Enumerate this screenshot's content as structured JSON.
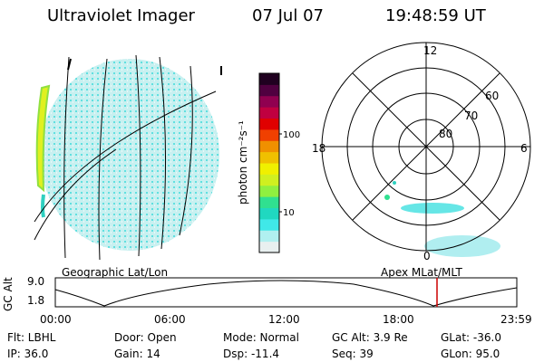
{
  "header": {
    "instrument": "Ultraviolet Imager",
    "date": "07 Jul 07",
    "time": "19:48:59 UT"
  },
  "colorbar": {
    "unit_label": "photon cm⁻²s⁻¹",
    "tick_labels": [
      "100",
      "10"
    ],
    "scale": "log",
    "colors": [
      "#e8f0f0",
      "#b0f0f0",
      "#40e8e8",
      "#20d8c0",
      "#30e090",
      "#90f040",
      "#d0f020",
      "#f0f000",
      "#f0c000",
      "#f09000",
      "#f04000",
      "#e00000",
      "#c00040",
      "#900050",
      "#500040",
      "#200020"
    ]
  },
  "polar_plot": {
    "hour_labels": [
      "12",
      "18",
      "6",
      "0"
    ],
    "lat_labels": [
      "60",
      "70",
      "80"
    ]
  },
  "timeline": {
    "y_axis_label": "GC Alt",
    "y_ticks": [
      "9.0",
      "1.8"
    ],
    "left_caption": "Geographic Lat/Lon",
    "right_caption": "Apex  MLat/MLT",
    "x_ticks": [
      "00:00",
      "06:00",
      "12:00",
      "18:00",
      "23:59"
    ],
    "marker_color": "#cc0000"
  },
  "info": {
    "row1": [
      "Flt: LBHL",
      "Door: Open",
      "Mode: Normal",
      "GC Alt: 3.9 Re",
      "GLat: -36.0"
    ],
    "row2": [
      "IP: 36.0",
      "Gain: 14",
      "Dsp:  -11.4",
      "Seq: 39",
      "GLon:  95.0"
    ]
  }
}
